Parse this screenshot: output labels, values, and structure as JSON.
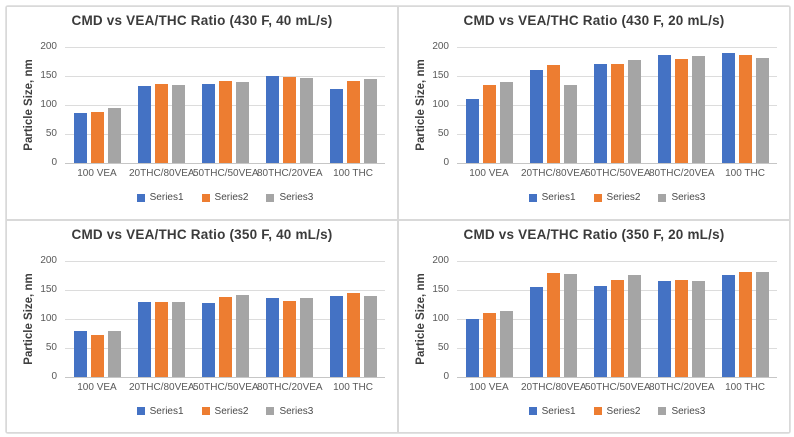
{
  "colors": {
    "series1_blue": "#4472C4",
    "series2_orange": "#ED7D31",
    "series3_gray": "#A5A5A5",
    "title_text": "#3B3B3B",
    "axis_text": "#595959",
    "gridline": "#DCDCDC",
    "panel_border": "#D9D9D9"
  },
  "chart_data": [
    {
      "type": "bar",
      "title": "CMD vs VEA/THC Ratio (430 F, 40 mL/s)",
      "xlabel": "",
      "ylabel": "Particle Size, nm",
      "ylim": [
        0,
        200
      ],
      "yticks": [
        0,
        50,
        100,
        150,
        200
      ],
      "grid": true,
      "legend_position": "bottom",
      "categories": [
        "100 VEA",
        "20THC/80VEA",
        "50THC/50VEA",
        "80THC/20VEA",
        "100 THC"
      ],
      "series": [
        {
          "name": "Series1",
          "color": "#4472C4",
          "values": [
            86,
            133,
            137,
            150,
            127
          ]
        },
        {
          "name": "Series2",
          "color": "#ED7D31",
          "values": [
            88,
            137,
            141,
            148,
            142
          ]
        },
        {
          "name": "Series3",
          "color": "#A5A5A5",
          "values": [
            95,
            134,
            139,
            147,
            145
          ]
        }
      ]
    },
    {
      "type": "bar",
      "title": "CMD vs VEA/THC Ratio (430 F, 20 mL/s)",
      "xlabel": "",
      "ylabel": "Particle Size, nm",
      "ylim": [
        0,
        200
      ],
      "yticks": [
        0,
        50,
        100,
        150,
        200
      ],
      "grid": true,
      "legend_position": "bottom",
      "categories": [
        "100 VEA",
        "20THC/80VEA",
        "50THC/50VEA",
        "80THC/20VEA",
        "100 THC"
      ],
      "series": [
        {
          "name": "Series1",
          "color": "#4472C4",
          "values": [
            110,
            160,
            170,
            186,
            189
          ]
        },
        {
          "name": "Series2",
          "color": "#ED7D31",
          "values": [
            135,
            169,
            171,
            179,
            186
          ]
        },
        {
          "name": "Series3",
          "color": "#A5A5A5",
          "values": [
            139,
            134,
            178,
            184,
            181
          ]
        }
      ]
    },
    {
      "type": "bar",
      "title": "CMD vs VEA/THC Ratio (350 F, 40 mL/s)",
      "xlabel": "",
      "ylabel": "Particle Size, nm",
      "ylim": [
        0,
        200
      ],
      "yticks": [
        0,
        50,
        100,
        150,
        200
      ],
      "grid": true,
      "legend_position": "bottom",
      "categories": [
        "100 VEA",
        "20THC/80VEA",
        "50THC/50VEA",
        "80THC/20VEA",
        "100 THC"
      ],
      "series": [
        {
          "name": "Series1",
          "color": "#4472C4",
          "values": [
            78,
            128,
            126,
            136,
            138
          ]
        },
        {
          "name": "Series2",
          "color": "#ED7D31",
          "values": [
            72,
            128,
            137,
            131,
            144
          ]
        },
        {
          "name": "Series3",
          "color": "#A5A5A5",
          "values": [
            79,
            128,
            140,
            136,
            139
          ]
        }
      ]
    },
    {
      "type": "bar",
      "title": "CMD vs VEA/THC Ratio (350 F, 20 mL/s)",
      "xlabel": "",
      "ylabel": "Particle Size, nm",
      "ylim": [
        0,
        200
      ],
      "yticks": [
        0,
        50,
        100,
        150,
        200
      ],
      "grid": true,
      "legend_position": "bottom",
      "categories": [
        "100 VEA",
        "20THC/80VEA",
        "50THC/50VEA",
        "80THC/20VEA",
        "100 THC"
      ],
      "series": [
        {
          "name": "Series1",
          "color": "#4472C4",
          "values": [
            99,
            154,
            156,
            164,
            175
          ]
        },
        {
          "name": "Series2",
          "color": "#ED7D31",
          "values": [
            110,
            178,
            167,
            167,
            180
          ]
        },
        {
          "name": "Series3",
          "color": "#A5A5A5",
          "values": [
            113,
            176,
            175,
            165,
            181
          ]
        }
      ]
    }
  ]
}
